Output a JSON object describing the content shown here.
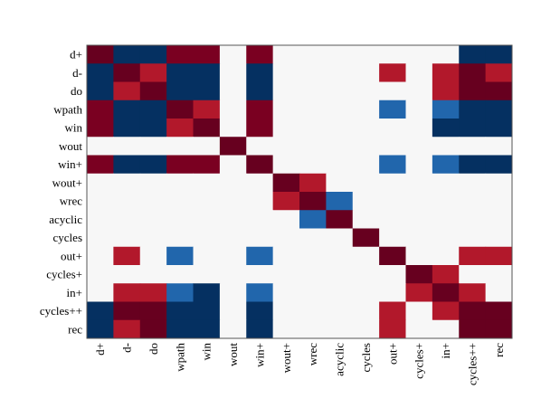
{
  "chart_data": {
    "type": "heatmap",
    "title": "",
    "xlabel": "",
    "ylabel": "",
    "row_labels": [
      "d+",
      "d-",
      "do",
      "wpath",
      "win",
      "wout",
      "win+",
      "wout+",
      "wrec",
      "acyclic",
      "cycles",
      "out+",
      "cycles+",
      "in+",
      "cycles++",
      "rec"
    ],
    "col_labels": [
      "d+",
      "d-",
      "do",
      "wpath",
      "win",
      "wout",
      "win+",
      "wout+",
      "wrec",
      "acyclic",
      "cycles",
      "out+",
      "cycles+",
      "in+",
      "cycles++",
      "rec"
    ],
    "value_range": [
      -1,
      1
    ],
    "legend": "none",
    "colors": {
      "1.0": "#67001f",
      "0.9": "#7a0021",
      "0.5": "#b2182b",
      "0": "#f7f7f7",
      "-0.5": "#2166ac",
      "-1.0": "#053061"
    },
    "matrix": [
      [
        1,
        -1,
        -1,
        0.9,
        0.9,
        0,
        0.9,
        0,
        0,
        0,
        0,
        0,
        0,
        0,
        -1,
        -1
      ],
      [
        -1,
        1,
        0.5,
        -1,
        -1,
        0,
        -1,
        0,
        0,
        0,
        0,
        0.5,
        0,
        0.5,
        1,
        0.5
      ],
      [
        -1,
        0.5,
        1,
        -1,
        -1,
        0,
        -1,
        0,
        0,
        0,
        0,
        0,
        0,
        0.5,
        1,
        1
      ],
      [
        0.9,
        -1,
        -1,
        1,
        0.5,
        0,
        0.9,
        0,
        0,
        0,
        0,
        -0.5,
        0,
        -0.5,
        -1,
        -1
      ],
      [
        0.9,
        -1,
        -1,
        0.5,
        1,
        0,
        0.9,
        0,
        0,
        0,
        0,
        0,
        0,
        -1,
        -1,
        -1
      ],
      [
        0,
        0,
        0,
        0,
        0,
        1,
        0,
        0,
        0,
        0,
        0,
        0,
        0,
        0,
        0,
        0
      ],
      [
        0.9,
        -1,
        -1,
        0.9,
        0.9,
        0,
        1,
        0,
        0,
        0,
        0,
        -0.5,
        0,
        -0.5,
        -1,
        -1
      ],
      [
        0,
        0,
        0,
        0,
        0,
        0,
        0,
        1,
        0.5,
        0,
        0,
        0,
        0,
        0,
        0,
        0
      ],
      [
        0,
        0,
        0,
        0,
        0,
        0,
        0,
        0.5,
        1,
        -0.5,
        0,
        0,
        0,
        0,
        0,
        0
      ],
      [
        0,
        0,
        0,
        0,
        0,
        0,
        0,
        0,
        -0.5,
        1,
        0,
        0,
        0,
        0,
        0,
        0
      ],
      [
        0,
        0,
        0,
        0,
        0,
        0,
        0,
        0,
        0,
        0,
        1,
        0,
        0,
        0,
        0,
        0
      ],
      [
        0,
        0.5,
        0,
        -0.5,
        0,
        0,
        -0.5,
        0,
        0,
        0,
        0,
        1,
        0,
        0,
        0.5,
        0.5
      ],
      [
        0,
        0,
        0,
        0,
        0,
        0,
        0,
        0,
        0,
        0,
        0,
        0,
        1,
        0.5,
        0,
        0
      ],
      [
        0,
        0.5,
        0.5,
        -0.5,
        -1,
        0,
        -0.5,
        0,
        0,
        0,
        0,
        0,
        0.5,
        1,
        0.5,
        0
      ],
      [
        -1,
        1,
        1,
        -1,
        -1,
        0,
        -1,
        0,
        0,
        0,
        0,
        0.5,
        0,
        0.5,
        1,
        1
      ],
      [
        -1,
        0.5,
        1,
        -1,
        -1,
        0,
        -1,
        0,
        0,
        0,
        0,
        0.5,
        0,
        0,
        1,
        1
      ]
    ]
  }
}
